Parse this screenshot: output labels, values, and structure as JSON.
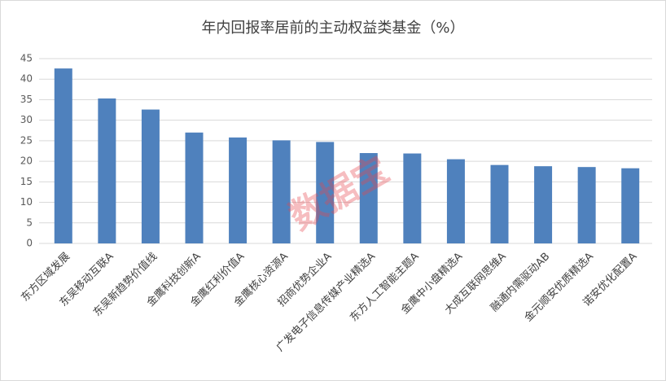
{
  "chart_data": {
    "type": "bar",
    "title": "年内回报率居前的主动权益类基金（%）",
    "categories": [
      "东方区域发展",
      "东吴移动互联A",
      "东吴新趋势价值线",
      "金鹰科技创新A",
      "金鹰红利价值A",
      "金鹰核心资源A",
      "招商优势企业A",
      "广发电子信息传媒产业精选A",
      "东方人工智能主题A",
      "金鹰中小盘精选A",
      "大成互联网思维A",
      "融通内需驱动AB",
      "金元顺安优质精选A",
      "诺安优化配置A"
    ],
    "values": [
      42.6,
      35.3,
      32.6,
      27.0,
      25.8,
      25.1,
      24.7,
      22.0,
      21.9,
      20.5,
      19.1,
      18.8,
      18.6,
      18.3
    ],
    "color": "#4f81bd",
    "ylim": [
      0,
      45
    ],
    "yticks": [
      0,
      5,
      10,
      15,
      20,
      25,
      30,
      35,
      40,
      45
    ],
    "grid": true,
    "watermark": "数据宝"
  }
}
